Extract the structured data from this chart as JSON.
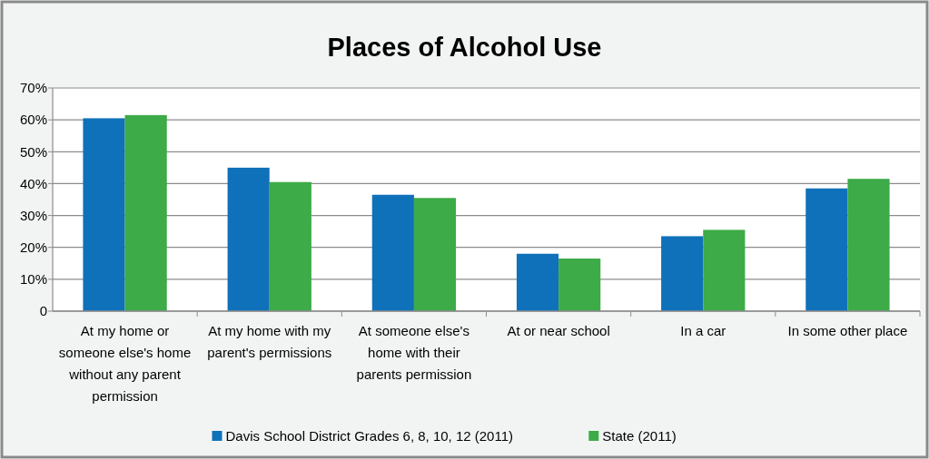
{
  "chart_data": {
    "type": "bar",
    "title": "Places of Alcohol Use",
    "categories": [
      "At my home or someone else's home without any parent permission",
      "At my home with my parent's permissions",
      "At someone else's home with their parents permission",
      "At or near school",
      "In a car",
      "In some other place"
    ],
    "series": [
      {
        "name": "Davis School District Grades 6, 8, 10, 12 (2011)",
        "color": "#0f71ba",
        "values": [
          60.5,
          45,
          36.5,
          18,
          23.5,
          38.5
        ]
      },
      {
        "name": "State (2011)",
        "color": "#3dab48",
        "values": [
          61.5,
          40.5,
          35.5,
          16.5,
          25.5,
          41.5
        ]
      }
    ],
    "ylim": [
      0,
      70
    ],
    "yticks": [
      0,
      {
        "value": 10,
        "label": "10%"
      },
      {
        "value": 20,
        "label": "20%"
      },
      {
        "value": 30,
        "label": "30%"
      },
      {
        "value": 40,
        "label": "40%"
      },
      {
        "value": 50,
        "label": "50%"
      },
      {
        "value": 60,
        "label": "60%"
      },
      {
        "value": 70,
        "label": "70%"
      }
    ],
    "grid": "y",
    "legend": "bottom"
  }
}
